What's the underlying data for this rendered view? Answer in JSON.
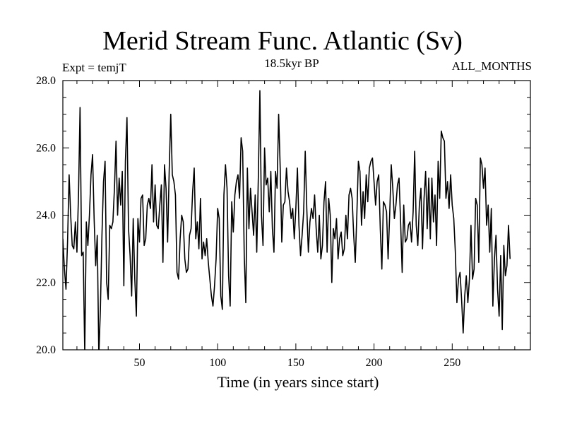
{
  "chart_data": {
    "type": "line",
    "title": "Merid Stream Func. Atlantic (Sv)",
    "subtitle": "18.5kyr BP",
    "top_left_label": "Expt = temjT",
    "top_right_label": "ALL_MONTHS",
    "xlabel": "Time (in years since start)",
    "ylabel": "",
    "xlim": [
      1,
      300
    ],
    "ylim": [
      20.0,
      28.0
    ],
    "xticks": [
      50,
      100,
      150,
      200,
      250
    ],
    "yticks": [
      "20.0",
      "22.0",
      "24.0",
      "26.0",
      "28.0"
    ],
    "grid": false,
    "series": [
      {
        "x_start": 1,
        "x_step": 1,
        "values": [
          23.3,
          22.4,
          21.8,
          23.2,
          25.2,
          24.0,
          23.1,
          23.0,
          23.8,
          22.9,
          24.6,
          27.2,
          22.8,
          22.9,
          19.9,
          23.8,
          23.1,
          24.0,
          25.2,
          25.8,
          23.9,
          22.5,
          23.4,
          19.8,
          21.2,
          23.4,
          25.0,
          25.6,
          22.0,
          21.5,
          23.7,
          23.6,
          23.8,
          24.8,
          26.2,
          24.0,
          25.1,
          24.3,
          25.3,
          21.9,
          25.6,
          26.9,
          23.6,
          22.8,
          21.6,
          23.9,
          22.1,
          21.0,
          23.9,
          23.2,
          24.5,
          24.6,
          23.1,
          23.3,
          24.3,
          24.5,
          24.2,
          25.5,
          23.8,
          24.9,
          23.7,
          23.6,
          24.3,
          24.9,
          22.6,
          25.5,
          24.8,
          23.2,
          25.3,
          27.0,
          25.2,
          25.0,
          24.6,
          22.3,
          22.1,
          23.3,
          24.0,
          23.8,
          22.7,
          22.3,
          22.4,
          23.4,
          23.6,
          24.7,
          25.4,
          23.3,
          23.8,
          23.0,
          24.5,
          22.7,
          23.2,
          22.8,
          23.3,
          22.6,
          22.1,
          21.6,
          21.3,
          21.9,
          22.7,
          24.2,
          23.9,
          21.6,
          21.2,
          24.6,
          25.5,
          24.8,
          22.2,
          21.3,
          24.4,
          23.5,
          24.6,
          25.0,
          25.2,
          24.5,
          26.3,
          25.9,
          22.8,
          21.4,
          25.4,
          23.6,
          24.8,
          24.1,
          23.4,
          24.6,
          22.9,
          25.1,
          27.7,
          24.0,
          23.1,
          26.0,
          24.9,
          25.1,
          24.1,
          25.3,
          23.6,
          22.9,
          25.3,
          24.8,
          27.0,
          25.4,
          23.2,
          24.3,
          24.4,
          25.4,
          24.7,
          24.4,
          23.9,
          24.2,
          23.3,
          24.2,
          25.4,
          23.7,
          22.8,
          23.4,
          24.1,
          25.9,
          24.2,
          22.9,
          23.8,
          24.2,
          23.9,
          24.6,
          23.6,
          22.9,
          24.0,
          22.7,
          23.1,
          24.4,
          25.0,
          22.9,
          24.5,
          24.0,
          22.0,
          23.6,
          23.3,
          23.9,
          22.7,
          23.3,
          23.5,
          22.8,
          23.0,
          24.0,
          23.3,
          24.6,
          24.8,
          24.5,
          23.4,
          22.6,
          24.0,
          25.6,
          25.3,
          23.7,
          24.7,
          23.9,
          25.2,
          24.4,
          25.4,
          25.6,
          25.7,
          25.0,
          24.3,
          25.0,
          25.2,
          23.6,
          22.4,
          24.4,
          24.3,
          24.1,
          22.7,
          24.0,
          25.5,
          24.8,
          23.9,
          24.3,
          24.9,
          25.1,
          23.8,
          22.3,
          24.3,
          23.2,
          23.3,
          23.7,
          23.8,
          23.2,
          24.1,
          25.9,
          23.7,
          23.1,
          24.3,
          24.8,
          23.0,
          24.5,
          25.3,
          23.6,
          25.1,
          23.3,
          25.1,
          23.8,
          24.6,
          23.1,
          25.6,
          24.5,
          26.5,
          26.3,
          26.2,
          24.5,
          25.0,
          24.2,
          25.2,
          24.3,
          23.9,
          22.9,
          21.4,
          22.1,
          22.3,
          21.5,
          20.5,
          21.6,
          22.2,
          21.4,
          22.1,
          23.7,
          22.1,
          22.4,
          24.5,
          24.3,
          22.6,
          25.7,
          25.5,
          24.8,
          25.4,
          23.7,
          24.3,
          22.9,
          24.2,
          21.3,
          22.7,
          23.4,
          21.8,
          21.0,
          22.8,
          20.6,
          23.1,
          22.2,
          22.5,
          23.7,
          22.7
        ]
      }
    ]
  }
}
